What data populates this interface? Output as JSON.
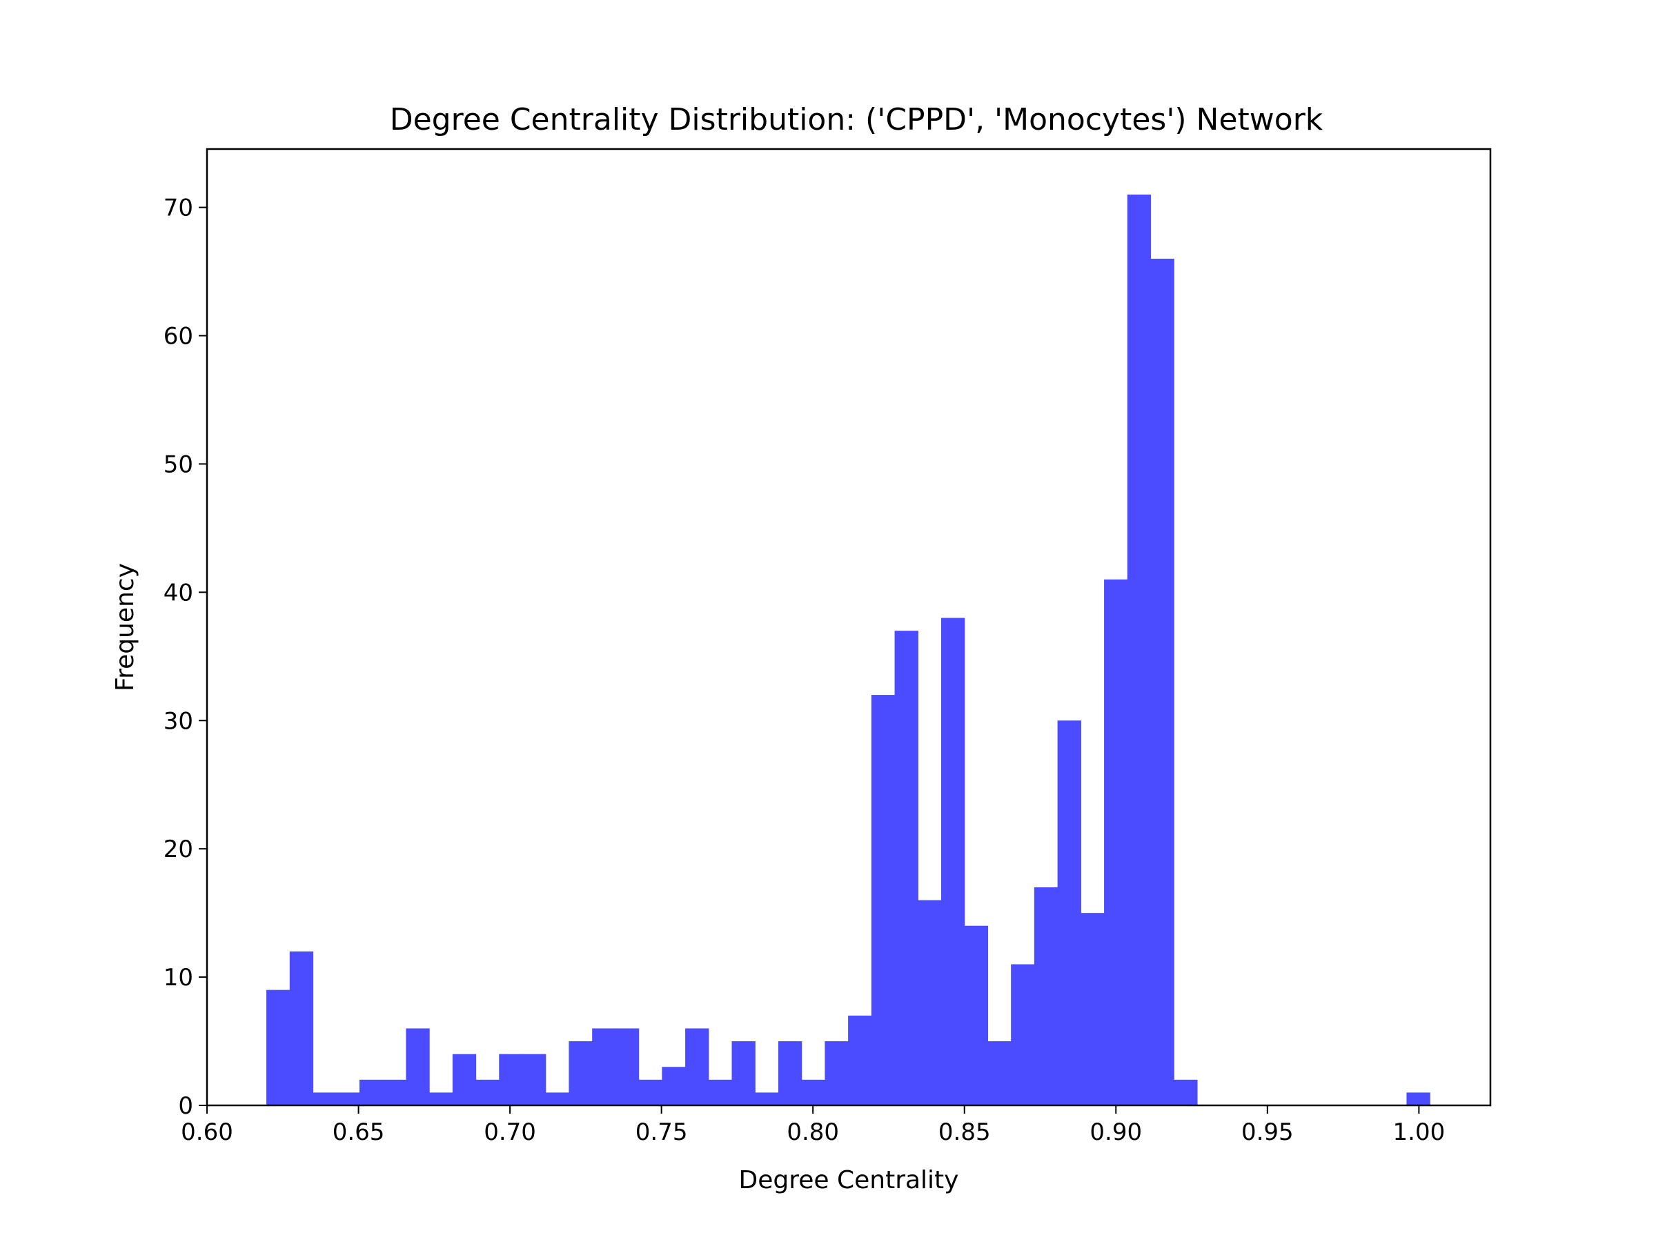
{
  "chart_data": {
    "type": "bar",
    "title": "Degree Centrality Distribution: ('CPPD', 'Monocytes') Network",
    "xlabel": "Degree Centrality",
    "ylabel": "Frequency",
    "xlim": [
      0.6,
      1.0236
    ],
    "ylim": [
      0,
      74.55
    ],
    "grid": false,
    "bar_color": "#4b4bff",
    "xticks": [
      {
        "value": 0.6,
        "label": "0.60"
      },
      {
        "value": 0.65,
        "label": "0.65"
      },
      {
        "value": 0.7,
        "label": "0.70"
      },
      {
        "value": 0.75,
        "label": "0.75"
      },
      {
        "value": 0.8,
        "label": "0.80"
      },
      {
        "value": 0.85,
        "label": "0.85"
      },
      {
        "value": 0.9,
        "label": "0.90"
      },
      {
        "value": 0.95,
        "label": "0.95"
      },
      {
        "value": 1.0,
        "label": "1.00"
      }
    ],
    "yticks": [
      {
        "value": 0,
        "label": "0"
      },
      {
        "value": 10,
        "label": "10"
      },
      {
        "value": 20,
        "label": "20"
      },
      {
        "value": 30,
        "label": "30"
      },
      {
        "value": 40,
        "label": "40"
      },
      {
        "value": 50,
        "label": "50"
      },
      {
        "value": 60,
        "label": "60"
      },
      {
        "value": 70,
        "label": "70"
      }
    ],
    "bin_start": 0.6196,
    "bin_width": 0.00768,
    "values": [
      9,
      12,
      1,
      1,
      2,
      2,
      6,
      1,
      4,
      2,
      4,
      4,
      1,
      5,
      6,
      6,
      2,
      3,
      6,
      2,
      5,
      1,
      5,
      2,
      5,
      7,
      32,
      37,
      16,
      38,
      14,
      5,
      11,
      17,
      30,
      15,
      41,
      71,
      66,
      2,
      0,
      0,
      0,
      0,
      0,
      0,
      0,
      0,
      0,
      1
    ]
  }
}
